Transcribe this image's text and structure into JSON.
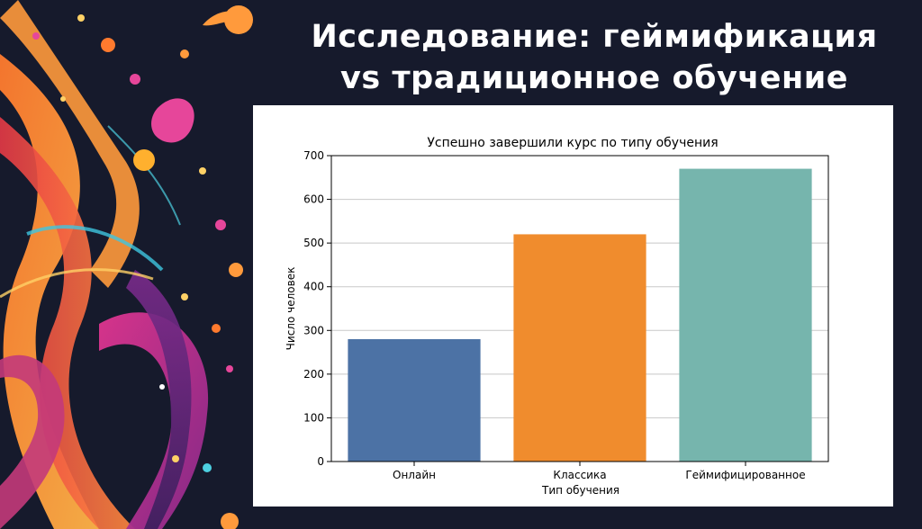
{
  "slide": {
    "title_line1": "Исследование: геймификация",
    "title_line2": "vs традиционное обучение",
    "background_color": "#161a2c",
    "title_color": "#ffffff"
  },
  "chart_data": {
    "type": "bar",
    "title": "Успешно завершили курс по типу обучения",
    "xlabel": "Тип обучения",
    "ylabel": "Число человек",
    "categories": [
      "Онлайн",
      "Классика",
      "Геймифицированное"
    ],
    "values": [
      280,
      520,
      670
    ],
    "colors": [
      "#4c72a5",
      "#f08c2d",
      "#76b5ad"
    ],
    "ylim": [
      0,
      700
    ],
    "yticks": [
      0,
      100,
      200,
      300,
      400,
      500,
      600,
      700
    ],
    "grid": "horizontal",
    "legend": "none"
  }
}
